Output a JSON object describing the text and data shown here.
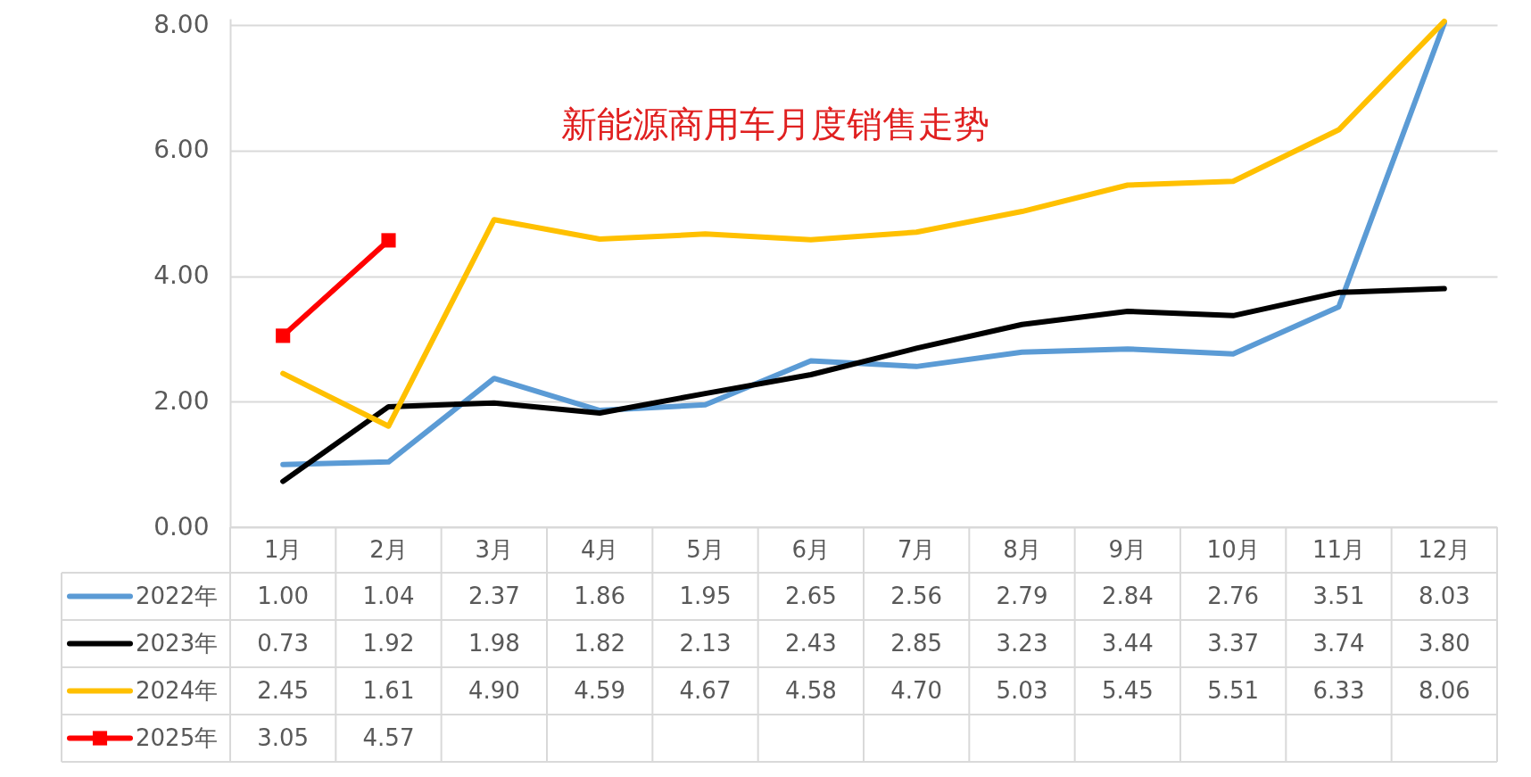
{
  "chart_data": {
    "type": "line",
    "title": "新能源商用车月度销售走势",
    "categories": [
      "1月",
      "2月",
      "3月",
      "4月",
      "5月",
      "6月",
      "7月",
      "8月",
      "9月",
      "10月",
      "11月",
      "12月"
    ],
    "series": [
      {
        "name": "2022年",
        "color": "#5b9bd5",
        "values": [
          1.0,
          1.04,
          2.37,
          1.86,
          1.95,
          2.65,
          2.56,
          2.79,
          2.84,
          2.76,
          3.51,
          8.03
        ],
        "value_labels": [
          "1.00",
          "1.04",
          "2.37",
          "1.86",
          "1.95",
          "2.65",
          "2.56",
          "2.79",
          "2.84",
          "2.76",
          "3.51",
          "8.03"
        ]
      },
      {
        "name": "2023年",
        "color": "#000000",
        "values": [
          0.73,
          1.92,
          1.98,
          1.82,
          2.13,
          2.43,
          2.85,
          3.23,
          3.44,
          3.37,
          3.74,
          3.8
        ],
        "value_labels": [
          "0.73",
          "1.92",
          "1.98",
          "1.82",
          "2.13",
          "2.43",
          "2.85",
          "3.23",
          "3.44",
          "3.37",
          "3.74",
          "3.80"
        ]
      },
      {
        "name": "2024年",
        "color": "#ffc000",
        "values": [
          2.45,
          1.61,
          4.9,
          4.59,
          4.67,
          4.58,
          4.7,
          5.03,
          5.45,
          5.51,
          6.33,
          8.06
        ],
        "value_labels": [
          "2.45",
          "1.61",
          "4.90",
          "4.59",
          "4.67",
          "4.58",
          "4.70",
          "5.03",
          "5.45",
          "5.51",
          "6.33",
          "8.06"
        ]
      },
      {
        "name": "2025年",
        "color": "#ff0000",
        "marker": "square",
        "values": [
          3.05,
          4.57,
          null,
          null,
          null,
          null,
          null,
          null,
          null,
          null,
          null,
          null
        ],
        "value_labels": [
          "3.05",
          "4.57",
          null,
          null,
          null,
          null,
          null,
          null,
          null,
          null,
          null,
          null
        ]
      }
    ],
    "ylim": [
      0,
      8.1
    ],
    "yticks": [
      {
        "value": 0,
        "label": "0.00"
      },
      {
        "value": 2,
        "label": "2.00"
      },
      {
        "value": 4,
        "label": "4.00"
      },
      {
        "value": 6,
        "label": "6.00"
      },
      {
        "value": 8,
        "label": "8.00"
      }
    ],
    "grid": "y",
    "legend": "bottom"
  }
}
